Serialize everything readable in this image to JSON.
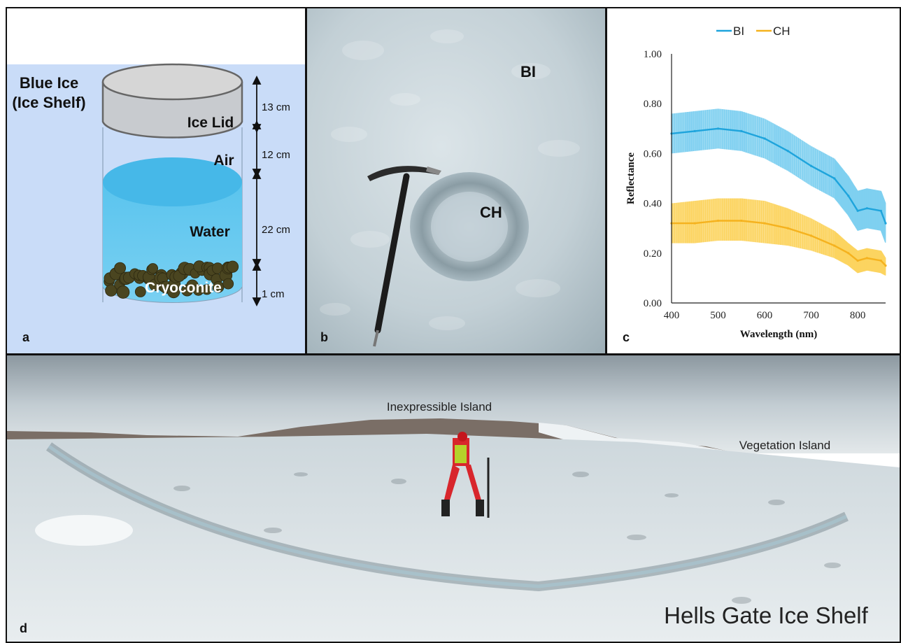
{
  "panel_a": {
    "label": "a",
    "blue_ice_title_line1": "Blue Ice",
    "blue_ice_title_line2": "(Ice Shelf)",
    "layers": [
      {
        "name": "Ice Lid",
        "thickness": "13 cm"
      },
      {
        "name": "Air",
        "thickness": "12 cm"
      },
      {
        "name": "Water",
        "thickness": "22 cm"
      },
      {
        "name": "Cryoconite",
        "thickness": "1 cm"
      }
    ],
    "colors": {
      "blue_ice_bg": "#c9dcf8",
      "water": "#5cc6ef",
      "ice_lid": "#c4c4c4",
      "cryoconite": "#4a4520"
    }
  },
  "panel_b": {
    "label": "b",
    "bi_label": "BI",
    "ch_label": "CH"
  },
  "panel_c": {
    "label": "c",
    "chart_data": {
      "type": "line",
      "xlabel": "Wavelength (nm)",
      "ylabel": "Reflectance",
      "xlim": [
        400,
        860
      ],
      "ylim": [
        0,
        1
      ],
      "xticks": [
        "400",
        "500",
        "600",
        "700",
        "800"
      ],
      "yticks": [
        "0.00",
        "0.20",
        "0.40",
        "0.60",
        "0.80",
        "1.00"
      ],
      "legend_position": "top",
      "series": [
        {
          "name": "BI",
          "color": "#1ea4dc",
          "band_color": "#7fd0f0",
          "x": [
            400,
            450,
            500,
            550,
            600,
            650,
            700,
            750,
            780,
            800,
            820,
            850,
            860
          ],
          "values": [
            0.68,
            0.69,
            0.7,
            0.69,
            0.66,
            0.61,
            0.55,
            0.5,
            0.43,
            0.37,
            0.38,
            0.37,
            0.32
          ],
          "upper": [
            0.76,
            0.77,
            0.78,
            0.77,
            0.74,
            0.69,
            0.63,
            0.58,
            0.51,
            0.45,
            0.46,
            0.45,
            0.4
          ],
          "lower": [
            0.6,
            0.61,
            0.62,
            0.61,
            0.58,
            0.53,
            0.47,
            0.42,
            0.35,
            0.29,
            0.3,
            0.29,
            0.24
          ]
        },
        {
          "name": "CH",
          "color": "#f5b21e",
          "band_color": "#fcd460",
          "x": [
            400,
            450,
            500,
            550,
            600,
            650,
            700,
            750,
            780,
            800,
            820,
            850,
            860
          ],
          "values": [
            0.32,
            0.32,
            0.33,
            0.33,
            0.32,
            0.3,
            0.27,
            0.23,
            0.2,
            0.17,
            0.18,
            0.17,
            0.15
          ],
          "upper": [
            0.4,
            0.41,
            0.42,
            0.42,
            0.41,
            0.38,
            0.34,
            0.29,
            0.24,
            0.21,
            0.22,
            0.21,
            0.18
          ],
          "lower": [
            0.24,
            0.24,
            0.25,
            0.25,
            0.24,
            0.23,
            0.21,
            0.18,
            0.15,
            0.12,
            0.13,
            0.12,
            0.11
          ]
        }
      ]
    }
  },
  "panel_d": {
    "label": "d",
    "inexpressible": "Inexpressible Island",
    "vegetation": "Vegetation Island",
    "shelf": "Hells Gate Ice Shelf"
  }
}
